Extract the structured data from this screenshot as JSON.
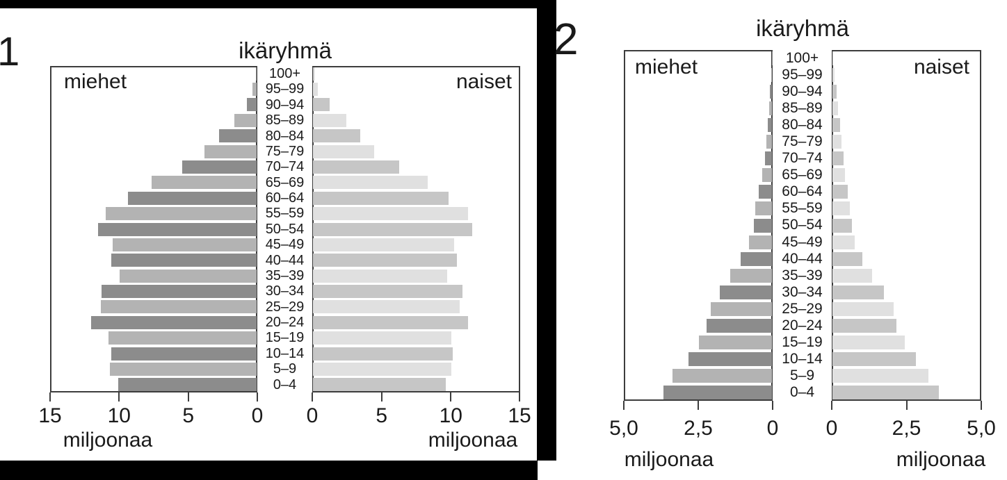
{
  "page": {
    "description": "Two population pyramids comparing age structure of two countries",
    "figure_numbers": [
      "1",
      "2"
    ]
  },
  "colors": {
    "male_dark": "#8c8c8c",
    "male_light": "#b3b3b3",
    "female_medium": "#c6c6c6",
    "female_light": "#e0e0e0",
    "frame": "#000000",
    "box_border": "#3c3c3c"
  },
  "chart_data": [
    {
      "figure_number": "1",
      "type": "bar",
      "subtype": "population-pyramid",
      "title": "ikäryhmä",
      "left_series_label": "miehet",
      "right_series_label": "naiset",
      "xlabel_left": "miljoonaa",
      "xlabel_right": "miljoonaa",
      "xmax": 15,
      "x_tick_labels_left": [
        "15",
        "10",
        "5",
        "0"
      ],
      "x_tick_labels_right": [
        "0",
        "5",
        "10",
        "15"
      ],
      "age_groups": [
        "100+",
        "95–99",
        "90–94",
        "85–89",
        "80–84",
        "75–79",
        "70–74",
        "65–69",
        "60–64",
        "55–59",
        "50–54",
        "45–49",
        "40–44",
        "35–39",
        "30–34",
        "25–29",
        "20–24",
        "15–19",
        "10–14",
        "5–9",
        "0–4"
      ],
      "series": [
        {
          "name": "miehet",
          "values": [
            0.05,
            0.3,
            0.7,
            1.6,
            2.7,
            3.8,
            5.4,
            7.6,
            9.3,
            10.9,
            11.5,
            10.4,
            10.5,
            9.9,
            11.2,
            11.3,
            12.0,
            10.7,
            10.5,
            10.6,
            10.0
          ]
        },
        {
          "name": "naiset",
          "values": [
            0.1,
            0.35,
            1.2,
            2.4,
            3.4,
            4.4,
            6.2,
            8.3,
            9.8,
            11.2,
            11.5,
            10.2,
            10.4,
            9.7,
            10.8,
            10.6,
            11.2,
            10.0,
            10.1,
            10.0,
            9.6
          ]
        }
      ]
    },
    {
      "figure_number": "2",
      "type": "bar",
      "subtype": "population-pyramid",
      "title": "ikäryhmä",
      "left_series_label": "miehet",
      "right_series_label": "naiset",
      "xlabel_left": "miljoonaa",
      "xlabel_right": "miljoonaa",
      "xmax": 5,
      "x_tick_labels_left": [
        "5,0",
        "2,5",
        "0"
      ],
      "x_tick_labels_right": [
        "0",
        "2,5",
        "5,0"
      ],
      "age_groups": [
        "100+",
        "95–99",
        "90–94",
        "85–89",
        "80–84",
        "75–79",
        "70–74",
        "65–69",
        "60–64",
        "55–59",
        "50–54",
        "45–49",
        "40–44",
        "35–39",
        "30–34",
        "25–29",
        "20–24",
        "15–19",
        "10–14",
        "5–9",
        "0–4"
      ],
      "series": [
        {
          "name": "miehet",
          "values": [
            0.01,
            0.03,
            0.06,
            0.09,
            0.13,
            0.18,
            0.24,
            0.33,
            0.45,
            0.55,
            0.61,
            0.76,
            1.05,
            1.4,
            1.75,
            2.05,
            2.2,
            2.45,
            2.8,
            3.35,
            3.65
          ]
        },
        {
          "name": "naiset",
          "values": [
            0.02,
            0.08,
            0.13,
            0.19,
            0.25,
            0.31,
            0.38,
            0.43,
            0.5,
            0.58,
            0.66,
            0.74,
            1.0,
            1.33,
            1.73,
            2.05,
            2.15,
            2.43,
            2.8,
            3.2,
            3.55
          ]
        }
      ]
    }
  ]
}
